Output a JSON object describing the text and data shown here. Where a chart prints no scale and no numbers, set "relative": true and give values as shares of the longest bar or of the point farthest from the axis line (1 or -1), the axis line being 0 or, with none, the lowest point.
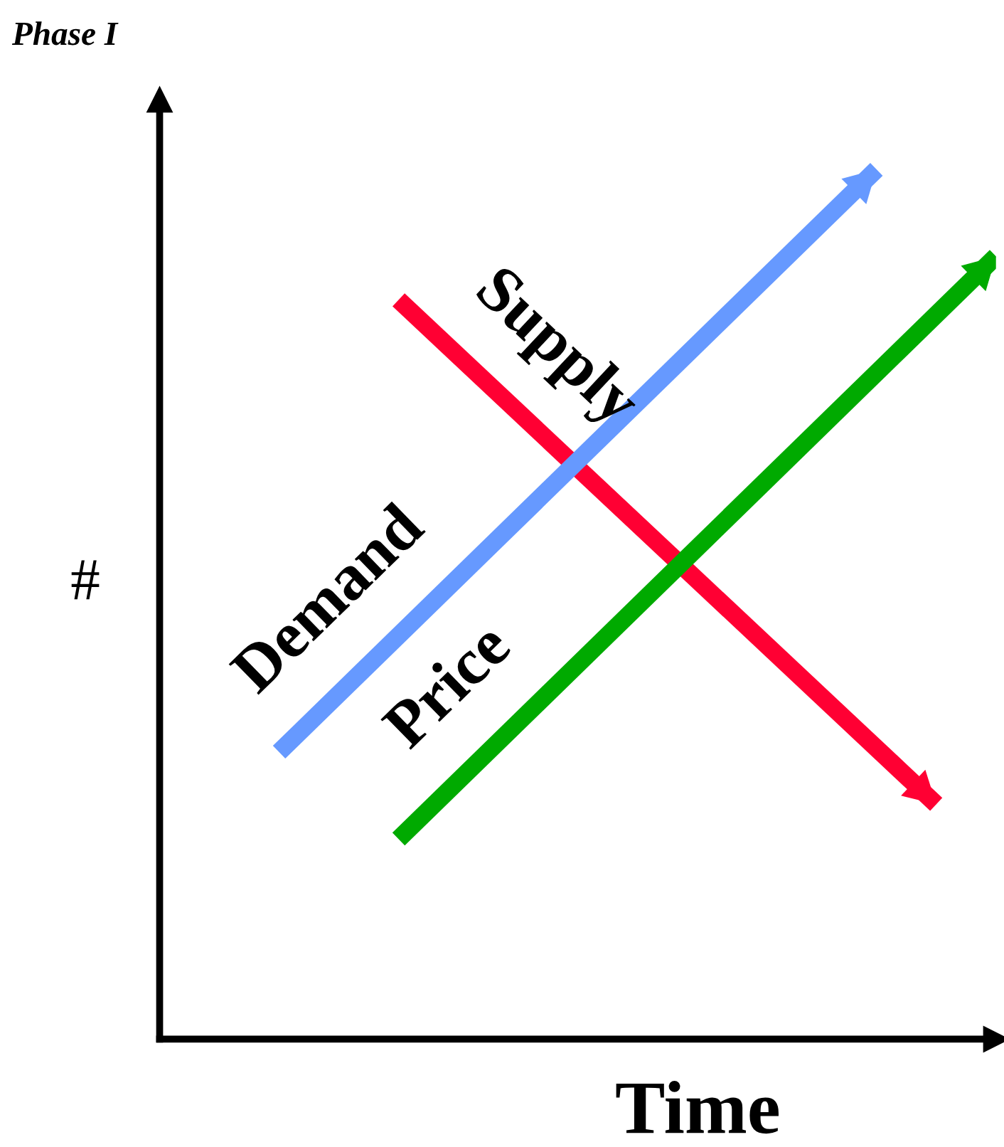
{
  "chart_data": {
    "type": "line",
    "title": "Phase I",
    "xlabel": "Time",
    "ylabel": "#",
    "relative": true,
    "line_style": "solid",
    "marker": "none",
    "categories": [
      null,
      null,
      null,
      null,
      null,
      null,
      null,
      null,
      null,
      null,
      null,
      null,
      null,
      null,
      null
    ],
    "series": [
      {
        "name": "Supply",
        "color": "#ff0033",
        "values": [
          null,
          null,
          null,
          null,
          0.85,
          null,
          null,
          null,
          null,
          null,
          null,
          null,
          null,
          0.27,
          null
        ]
      },
      {
        "name": "Demand",
        "color": "#6699ff",
        "values": [
          null,
          null,
          0.33,
          null,
          null,
          null,
          null,
          null,
          null,
          null,
          null,
          null,
          1.0,
          null,
          null
        ]
      },
      {
        "name": "Price",
        "color": "#00aa00",
        "values": [
          null,
          null,
          null,
          null,
          0.23,
          null,
          null,
          null,
          null,
          null,
          null,
          null,
          null,
          null,
          0.9
        ]
      }
    ]
  }
}
